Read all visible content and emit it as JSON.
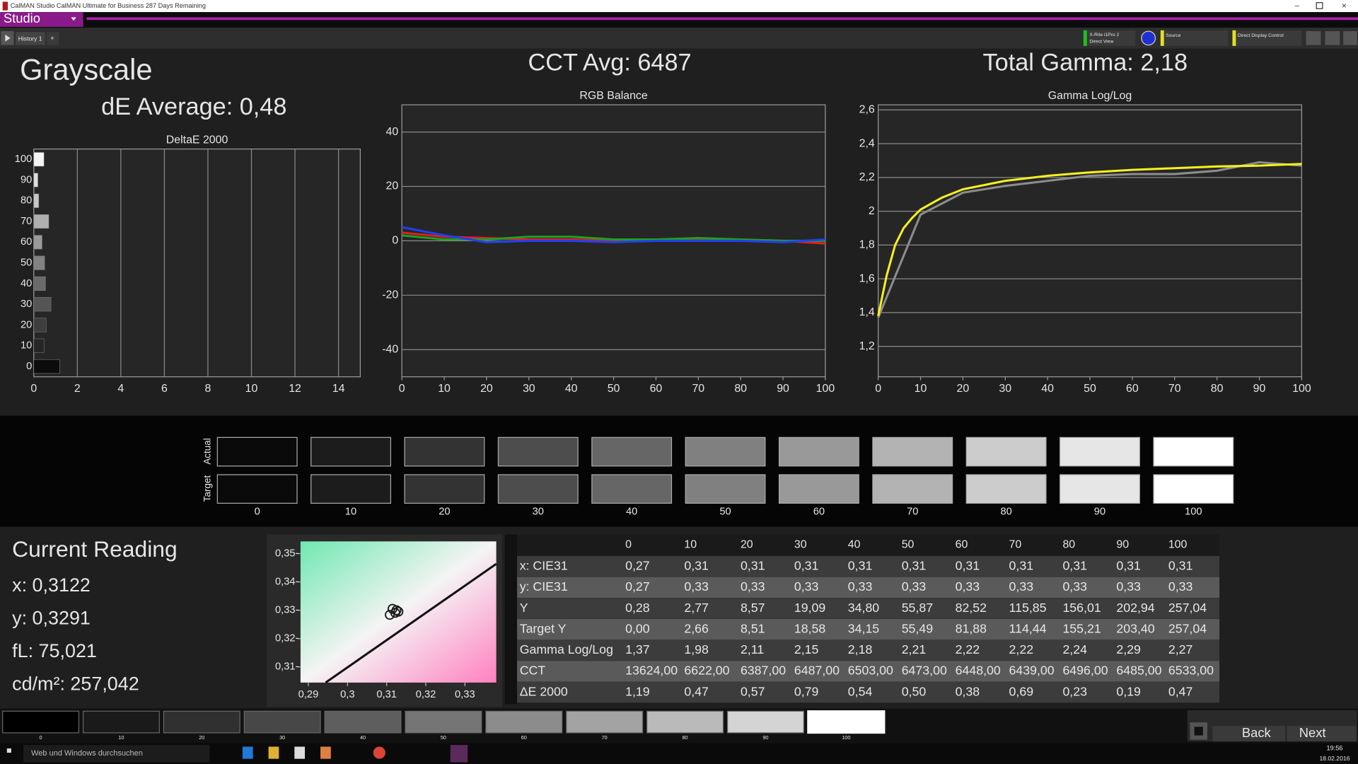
{
  "window": {
    "title": "CalMAN Studio CalMAN Ultimate for Business 287 Days Remaining",
    "menu": "Studio",
    "tab": "History 1"
  },
  "toolbar": {
    "meter": "X-Rite i1Pro 2",
    "meter_mode": "Direct View",
    "source": "Source",
    "display": "Direct Display Control"
  },
  "header": {
    "title": "Grayscale",
    "de_average": "dE Average: 0,48",
    "cct_avg": "CCT Avg: 6487",
    "total_gamma": "Total Gamma: 2,18"
  },
  "charts": [
    {
      "type": "bar",
      "orientation": "horizontal",
      "title": "DeltaE 2000",
      "categories": [
        "100",
        "90",
        "80",
        "70",
        "60",
        "50",
        "40",
        "30",
        "20",
        "10",
        "0"
      ],
      "values": [
        0.47,
        0.19,
        0.23,
        0.69,
        0.38,
        0.5,
        0.54,
        0.79,
        0.57,
        0.47,
        1.19
      ],
      "colors": [
        "#f4f4f4",
        "#dedede",
        "#c8c8c8",
        "#b0b0b0",
        "#999999",
        "#828282",
        "#6b6b6b",
        "#555555",
        "#3e3e3e",
        "#262626",
        "#0c0c0c"
      ],
      "xlim": [
        0,
        15
      ],
      "xticks": [
        0,
        2,
        4,
        6,
        8,
        10,
        12,
        14
      ],
      "grid": true
    },
    {
      "type": "line",
      "title": "RGB Balance",
      "x": [
        0,
        10,
        20,
        30,
        40,
        50,
        60,
        70,
        80,
        90,
        100
      ],
      "series": [
        {
          "color": "#e02020",
          "values": [
            3,
            1.5,
            1,
            0.5,
            0.5,
            0,
            0.5,
            0.5,
            0.5,
            0,
            -1
          ]
        },
        {
          "color": "#20a020",
          "values": [
            2,
            0.5,
            0.5,
            1.5,
            1.5,
            0.5,
            0.5,
            1,
            0.5,
            0,
            0
          ]
        },
        {
          "color": "#2040f0",
          "values": [
            5,
            2,
            -0.5,
            0,
            0,
            -0.5,
            0,
            0,
            0,
            -0.5,
            0.5
          ]
        }
      ],
      "xlim": [
        0,
        100
      ],
      "ylim": [
        -50,
        50
      ],
      "xticks": [
        0,
        10,
        20,
        30,
        40,
        50,
        60,
        70,
        80,
        90,
        100
      ],
      "yticks": [
        -40,
        -20,
        0,
        20,
        40
      ],
      "grid": true
    },
    {
      "type": "line",
      "title": "Gamma Log/Log",
      "series": [
        {
          "color": "#8c8c8c",
          "x": [
            0,
            10,
            20,
            30,
            40,
            50,
            60,
            70,
            80,
            90,
            100
          ],
          "values": [
            1.37,
            1.98,
            2.11,
            2.15,
            2.18,
            2.21,
            2.22,
            2.22,
            2.24,
            2.29,
            2.27
          ]
        },
        {
          "color": "#f5f01e",
          "x": [
            0,
            2,
            4,
            6,
            8,
            10,
            15,
            20,
            30,
            40,
            50,
            60,
            70,
            80,
            90,
            100
          ],
          "values": [
            1.38,
            1.62,
            1.8,
            1.9,
            1.96,
            2.01,
            2.08,
            2.13,
            2.18,
            2.21,
            2.23,
            2.245,
            2.255,
            2.265,
            2.27,
            2.28
          ]
        }
      ],
      "xlim": [
        0,
        100
      ],
      "ylim": [
        1.02,
        2.63
      ],
      "xticks": [
        0,
        10,
        20,
        30,
        40,
        50,
        60,
        70,
        80,
        90,
        100
      ],
      "yticks": [
        {
          "value": 1.2,
          "label": "1,2"
        },
        {
          "value": 1.4,
          "label": "1,4"
        },
        {
          "value": 1.6,
          "label": "1,6"
        },
        {
          "value": 1.8,
          "label": "1,8"
        },
        2,
        {
          "value": 2.2,
          "label": "2,2"
        },
        {
          "value": 2.4,
          "label": "2,4"
        },
        {
          "value": 2.6,
          "label": "2,6"
        }
      ],
      "grid": true
    },
    {
      "type": "scatter",
      "x": [
        0.3115,
        0.3125,
        0.313,
        0.3122,
        0.3108
      ],
      "y": [
        0.3305,
        0.33,
        0.3295,
        0.3291,
        0.3284
      ],
      "color": "#1a1a1a",
      "xlim": [
        0.288,
        0.338
      ],
      "ylim": [
        0.3045,
        0.3543
      ],
      "xticks": [
        {
          "value": 0.29,
          "label": "0,29"
        },
        {
          "value": 0.3,
          "label": "0,3"
        },
        {
          "value": 0.31,
          "label": "0,31"
        },
        {
          "value": 0.32,
          "label": "0,32"
        },
        {
          "value": 0.33,
          "label": "0,33"
        }
      ],
      "yticks": [
        {
          "value": 0.31,
          "label": "0,31-"
        },
        {
          "value": 0.32,
          "label": "0,32-"
        },
        {
          "value": 0.33,
          "label": "0,33-"
        },
        {
          "value": 0.34,
          "label": "0,34-"
        },
        {
          "value": 0.35,
          "label": "0,35-"
        }
      ],
      "grid": false
    }
  ],
  "swatches": {
    "row_labels": [
      "Actual",
      "Target"
    ],
    "labels": [
      "0",
      "10",
      "20",
      "30",
      "40",
      "50",
      "60",
      "70",
      "80",
      "90",
      "100"
    ],
    "actual_colors": [
      "#0a0a0a",
      "#1c1c1c",
      "#333333",
      "#4d4d4d",
      "#666666",
      "#808080",
      "#999999",
      "#b3b3b3",
      "#cccccc",
      "#e6e6e6",
      "#ffffff"
    ],
    "target_colors": [
      "#0a0a0a",
      "#1c1c1c",
      "#333333",
      "#4d4d4d",
      "#666666",
      "#808080",
      "#999999",
      "#b3b3b3",
      "#cccccc",
      "#e6e6e6",
      "#ffffff"
    ]
  },
  "reading": {
    "title": "Current Reading",
    "lines": [
      "x: 0,3122",
      "y: 0,3291",
      "fL: 75,021",
      "cd/m²: 257,042"
    ]
  },
  "table": {
    "columns": [
      "0",
      "10",
      "20",
      "30",
      "40",
      "50",
      "60",
      "70",
      "80",
      "90",
      "100"
    ],
    "rows": [
      [
        "x: CIE31",
        "0,27",
        "0,31",
        "0,31",
        "0,31",
        "0,31",
        "0,31",
        "0,31",
        "0,31",
        "0,31",
        "0,31",
        "0,31"
      ],
      [
        "y: CIE31",
        "0,27",
        "0,33",
        "0,33",
        "0,33",
        "0,33",
        "0,33",
        "0,33",
        "0,33",
        "0,33",
        "0,33",
        "0,33"
      ],
      [
        "Y",
        "0,28",
        "2,77",
        "8,57",
        "19,09",
        "34,80",
        "55,87",
        "82,52",
        "115,85",
        "156,01",
        "202,94",
        "257,04"
      ],
      [
        "Target Y",
        "0,00",
        "2,66",
        "8,51",
        "18,58",
        "34,15",
        "55,49",
        "81,88",
        "114,44",
        "155,21",
        "203,40",
        "257,04"
      ],
      [
        "Gamma Log/Log",
        "1,37",
        "1,98",
        "2,11",
        "2,15",
        "2,18",
        "2,21",
        "2,22",
        "2,22",
        "2,24",
        "2,29",
        "2,27"
      ],
      [
        "CCT",
        "13624,00",
        "6622,00",
        "6387,00",
        "6487,00",
        "6503,00",
        "6473,00",
        "6448,00",
        "6439,00",
        "6496,00",
        "6485,00",
        "6533,00"
      ],
      [
        "ΔE 2000",
        "1,19",
        "0,47",
        "0,57",
        "0,79",
        "0,54",
        "0,50",
        "0,38",
        "0,69",
        "0,23",
        "0,19",
        "0,47"
      ]
    ]
  },
  "bottom_strip": {
    "labels": [
      "0",
      "10",
      "20",
      "30",
      "40",
      "50",
      "60",
      "70",
      "80",
      "90",
      "100"
    ],
    "colors": [
      "#000000",
      "#1a1a1a",
      "#303030",
      "#474747",
      "#5e5e5e",
      "#757575",
      "#8c8c8c",
      "#a3a3a3",
      "#bababa",
      "#d4d4d4",
      "#ffffff"
    ]
  },
  "nav": {
    "back": "Back",
    "next": "Next"
  },
  "taskbar": {
    "search": "Web und Windows durchsuchen",
    "time": "19:56",
    "date": "18.02.2016"
  }
}
